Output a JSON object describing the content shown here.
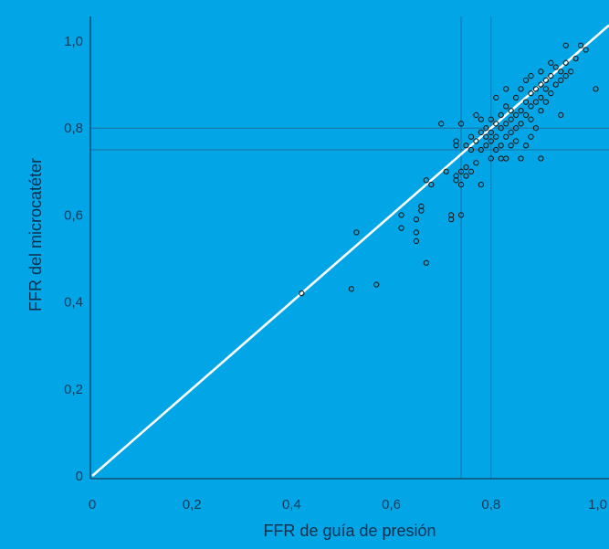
{
  "chart_data": {
    "type": "scatter",
    "title": "",
    "xlabel": "FFR de guía de presión",
    "ylabel": "FFR del microcatéter",
    "xlim": [
      0,
      1.0
    ],
    "ylim": [
      0,
      1.0
    ],
    "x_ticks": [
      "0",
      "0,2",
      "0,4",
      "0,6",
      "0,8",
      "1,0"
    ],
    "y_ticks": [
      "0",
      "0,2",
      "0,4",
      "0,6",
      "0,8",
      "1,0"
    ],
    "grid": false,
    "identity_line": true,
    "threshold_lines": {
      "x": [
        0.74,
        0.8
      ],
      "y": [
        0.8,
        0.75
      ]
    },
    "colors": {
      "background": "#02a6e6",
      "points": "#1a1a1a",
      "identity_line": "#ffffff",
      "axes": "#1a3d5c"
    },
    "series": [
      {
        "values": [
          {
            "x": 0.42,
            "y": 0.42
          },
          {
            "x": 0.52,
            "y": 0.43
          },
          {
            "x": 0.53,
            "y": 0.56
          },
          {
            "x": 0.57,
            "y": 0.44
          },
          {
            "x": 0.62,
            "y": 0.57
          },
          {
            "x": 0.62,
            "y": 0.6
          },
          {
            "x": 0.65,
            "y": 0.54
          },
          {
            "x": 0.65,
            "y": 0.56
          },
          {
            "x": 0.65,
            "y": 0.59
          },
          {
            "x": 0.66,
            "y": 0.61
          },
          {
            "x": 0.66,
            "y": 0.62
          },
          {
            "x": 0.67,
            "y": 0.49
          },
          {
            "x": 0.67,
            "y": 0.68
          },
          {
            "x": 0.68,
            "y": 0.67
          },
          {
            "x": 0.7,
            "y": 0.81
          },
          {
            "x": 0.71,
            "y": 0.7
          },
          {
            "x": 0.72,
            "y": 0.59
          },
          {
            "x": 0.72,
            "y": 0.6
          },
          {
            "x": 0.73,
            "y": 0.68
          },
          {
            "x": 0.73,
            "y": 0.69
          },
          {
            "x": 0.73,
            "y": 0.76
          },
          {
            "x": 0.73,
            "y": 0.77
          },
          {
            "x": 0.74,
            "y": 0.6
          },
          {
            "x": 0.74,
            "y": 0.67
          },
          {
            "x": 0.74,
            "y": 0.7
          },
          {
            "x": 0.74,
            "y": 0.81
          },
          {
            "x": 0.75,
            "y": 0.69
          },
          {
            "x": 0.75,
            "y": 0.71
          },
          {
            "x": 0.75,
            "y": 0.76
          },
          {
            "x": 0.76,
            "y": 0.7
          },
          {
            "x": 0.76,
            "y": 0.75
          },
          {
            "x": 0.76,
            "y": 0.78
          },
          {
            "x": 0.77,
            "y": 0.72
          },
          {
            "x": 0.77,
            "y": 0.77
          },
          {
            "x": 0.77,
            "y": 0.83
          },
          {
            "x": 0.78,
            "y": 0.67
          },
          {
            "x": 0.78,
            "y": 0.75
          },
          {
            "x": 0.78,
            "y": 0.79
          },
          {
            "x": 0.78,
            "y": 0.82
          },
          {
            "x": 0.79,
            "y": 0.76
          },
          {
            "x": 0.79,
            "y": 0.78
          },
          {
            "x": 0.79,
            "y": 0.8
          },
          {
            "x": 0.8,
            "y": 0.73
          },
          {
            "x": 0.8,
            "y": 0.77
          },
          {
            "x": 0.8,
            "y": 0.79
          },
          {
            "x": 0.8,
            "y": 0.82
          },
          {
            "x": 0.81,
            "y": 0.75
          },
          {
            "x": 0.81,
            "y": 0.78
          },
          {
            "x": 0.81,
            "y": 0.81
          },
          {
            "x": 0.81,
            "y": 0.87
          },
          {
            "x": 0.82,
            "y": 0.73
          },
          {
            "x": 0.82,
            "y": 0.76
          },
          {
            "x": 0.82,
            "y": 0.8
          },
          {
            "x": 0.82,
            "y": 0.83
          },
          {
            "x": 0.83,
            "y": 0.73
          },
          {
            "x": 0.83,
            "y": 0.78
          },
          {
            "x": 0.83,
            "y": 0.81
          },
          {
            "x": 0.83,
            "y": 0.85
          },
          {
            "x": 0.83,
            "y": 0.89
          },
          {
            "x": 0.84,
            "y": 0.76
          },
          {
            "x": 0.84,
            "y": 0.79
          },
          {
            "x": 0.84,
            "y": 0.82
          },
          {
            "x": 0.84,
            "y": 0.84
          },
          {
            "x": 0.85,
            "y": 0.77
          },
          {
            "x": 0.85,
            "y": 0.8
          },
          {
            "x": 0.85,
            "y": 0.83
          },
          {
            "x": 0.85,
            "y": 0.87
          },
          {
            "x": 0.86,
            "y": 0.73
          },
          {
            "x": 0.86,
            "y": 0.81
          },
          {
            "x": 0.86,
            "y": 0.84
          },
          {
            "x": 0.86,
            "y": 0.89
          },
          {
            "x": 0.87,
            "y": 0.76
          },
          {
            "x": 0.87,
            "y": 0.83
          },
          {
            "x": 0.87,
            "y": 0.86
          },
          {
            "x": 0.87,
            "y": 0.91
          },
          {
            "x": 0.88,
            "y": 0.78
          },
          {
            "x": 0.88,
            "y": 0.82
          },
          {
            "x": 0.88,
            "y": 0.85
          },
          {
            "x": 0.88,
            "y": 0.88
          },
          {
            "x": 0.88,
            "y": 0.92
          },
          {
            "x": 0.89,
            "y": 0.8
          },
          {
            "x": 0.89,
            "y": 0.86
          },
          {
            "x": 0.89,
            "y": 0.89
          },
          {
            "x": 0.9,
            "y": 0.73
          },
          {
            "x": 0.9,
            "y": 0.84
          },
          {
            "x": 0.9,
            "y": 0.87
          },
          {
            "x": 0.9,
            "y": 0.9
          },
          {
            "x": 0.9,
            "y": 0.93
          },
          {
            "x": 0.91,
            "y": 0.86
          },
          {
            "x": 0.91,
            "y": 0.89
          },
          {
            "x": 0.91,
            "y": 0.91
          },
          {
            "x": 0.92,
            "y": 0.88
          },
          {
            "x": 0.92,
            "y": 0.92
          },
          {
            "x": 0.92,
            "y": 0.95
          },
          {
            "x": 0.93,
            "y": 0.9
          },
          {
            "x": 0.93,
            "y": 0.94
          },
          {
            "x": 0.94,
            "y": 0.83
          },
          {
            "x": 0.94,
            "y": 0.91
          },
          {
            "x": 0.94,
            "y": 0.93
          },
          {
            "x": 0.95,
            "y": 0.92
          },
          {
            "x": 0.95,
            "y": 0.95
          },
          {
            "x": 0.95,
            "y": 0.99
          },
          {
            "x": 0.96,
            "y": 0.93
          },
          {
            "x": 0.97,
            "y": 0.96
          },
          {
            "x": 0.98,
            "y": 0.99
          },
          {
            "x": 0.99,
            "y": 0.98
          },
          {
            "x": 1.01,
            "y": 0.89
          }
        ]
      }
    ]
  }
}
